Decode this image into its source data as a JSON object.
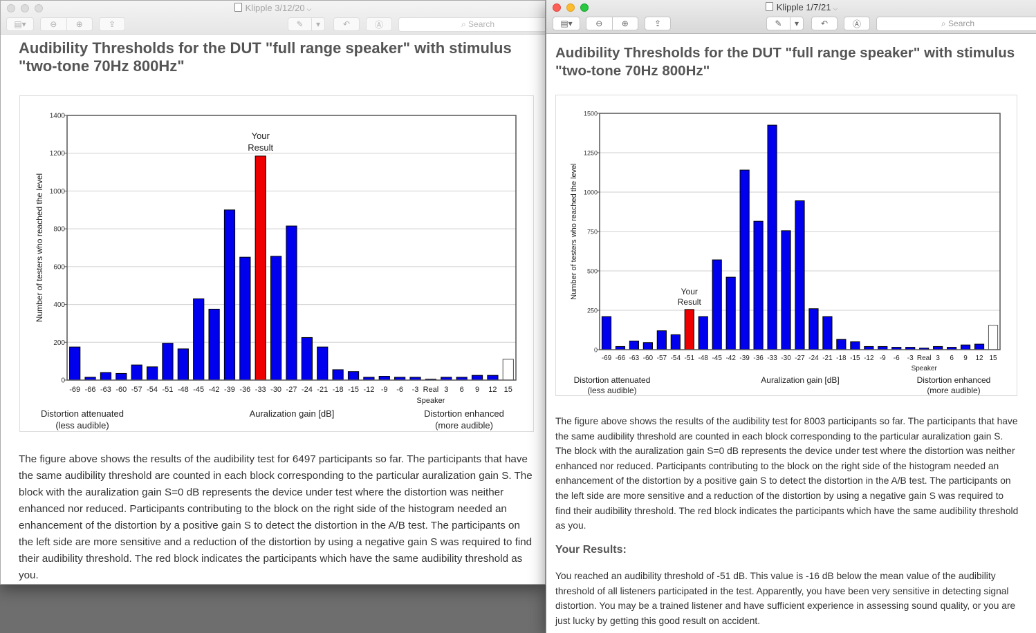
{
  "left_window": {
    "title": "Klipple 3/12/20",
    "search_placeholder": "Search",
    "heading": "Audibility Thresholds for the DUT \"full range speaker\" with stimulus \"two-tone 70Hz 800Hz\"",
    "paragraph": "The figure above shows the results of the audibility test for 6497 participants so far. The participants that have the same audibility threshold are counted in each block corresponding to the particular auralization gain S. The block with the auralization gain S=0 dB represents the device under test where the distortion was neither enhanced nor reduced. Participants contributing to the block on the right side of the histogram needed an enhancement of the distortion by a positive gain S to detect the distortion in the A/B test. The participants on the left side are more sensitive and a reduction of the distortion by using a negative gain S was required to find their audibility threshold. The red block indicates the participants which have the same audibility threshold as you."
  },
  "right_window": {
    "title": "Klipple 1/7/21",
    "search_placeholder": "Search",
    "heading": "Audibility Thresholds for the DUT \"full range speaker\" with stimulus \"two-tone 70Hz 800Hz\"",
    "paragraph": "The figure above shows the results of the audibility test for 8003 participants so far. The participants that have the same audibility threshold are counted in each block corresponding to the particular auralization gain S. The block with the auralization gain S=0 dB represents the device under test where the distortion was neither enhanced nor reduced. Participants contributing to the block on the right side of the histogram needed an enhancement of the distortion by a positive gain S to detect the distortion in the A/B test. The participants on the left side are more sensitive and a reduction of the distortion by using a negative gain S was required to find their audibility threshold. The red block indicates the participants which have the same audibility threshold as you.",
    "results_heading": "Your Results:",
    "results_text": "You reached an audibility threshold of -51 dB. This value is -16 dB below the mean value of the audibility threshold of all listeners participated in the test. Apparently, you have been very sensitive in detecting signal distortion. You may be a trained listener and have sufficient experience in assessing sound quality, or you are just lucky by getting this good result on accident."
  },
  "colors": {
    "bar": "#0000ee",
    "highlight": "#ee0000",
    "reference_bar": "#ffffff"
  },
  "chart_data": [
    {
      "type": "bar",
      "categories": [
        "-69",
        "-66",
        "-63",
        "-60",
        "-57",
        "-54",
        "-51",
        "-48",
        "-45",
        "-42",
        "-39",
        "-36",
        "-33",
        "-30",
        "-27",
        "-24",
        "-21",
        "-18",
        "-15",
        "-12",
        "-9",
        "-6",
        "-3",
        "Real Speaker",
        "3",
        "6",
        "9",
        "12",
        "15"
      ],
      "values": [
        175,
        15,
        40,
        35,
        80,
        70,
        195,
        165,
        430,
        375,
        900,
        650,
        1185,
        655,
        815,
        225,
        175,
        55,
        45,
        15,
        20,
        15,
        15,
        5,
        15,
        15,
        25,
        25,
        110
      ],
      "highlight_category": "-33",
      "highlight_label": "Your Result",
      "outlined_category": "15",
      "ylabel": "Number of testers who reached the level",
      "xlabel": "Auralization gain [dB]",
      "left_note": "Distortion attenuated (less audible)",
      "right_note": "Distortion enhanced (more audible)",
      "ylim": [
        0,
        1400
      ],
      "yticks": [
        0,
        200,
        400,
        600,
        800,
        1000,
        1200,
        1400
      ],
      "grid": true
    },
    {
      "type": "bar",
      "categories": [
        "-69",
        "-66",
        "-63",
        "-60",
        "-57",
        "-54",
        "-51",
        "-48",
        "-45",
        "-42",
        "-39",
        "-36",
        "-33",
        "-30",
        "-27",
        "-24",
        "-21",
        "-18",
        "-15",
        "-12",
        "-9",
        "-6",
        "-3",
        "Real Speaker",
        "3",
        "6",
        "9",
        "12",
        "15"
      ],
      "values": [
        210,
        20,
        55,
        45,
        120,
        95,
        255,
        210,
        570,
        460,
        1140,
        815,
        1425,
        755,
        945,
        260,
        210,
        65,
        50,
        20,
        20,
        15,
        15,
        10,
        20,
        15,
        30,
        35,
        155
      ],
      "highlight_category": "-51",
      "highlight_label": "Your Result",
      "outlined_category": "15",
      "ylabel": "Number of testers who reached the level",
      "xlabel": "Auralization gain [dB]",
      "left_note": "Distortion attenuated (less audible)",
      "right_note": "Distortion enhanced (more audible)",
      "ylim": [
        0,
        1500
      ],
      "yticks": [
        0,
        250,
        500,
        750,
        1000,
        1250,
        1500
      ],
      "grid": true
    }
  ]
}
